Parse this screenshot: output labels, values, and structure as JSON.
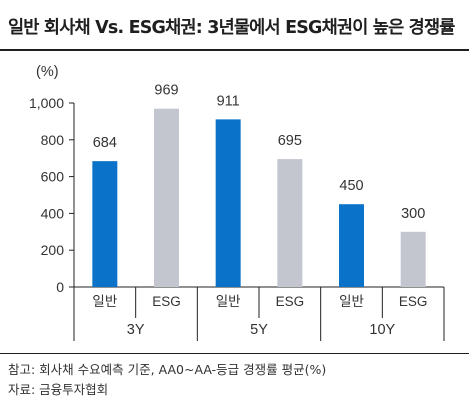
{
  "title": "일반 회사채 Vs. ESG채권: 3년물에서 ESG채권이 높은 경쟁률",
  "notes": [
    "참고: 회사채 수요예측 기준, AA0~AA-등급 경쟁률 평균(%)",
    "자료: 금융투자협회"
  ],
  "colors": {
    "general": "#0a73c9",
    "esg": "#c3c5cf",
    "axis": "#222222"
  },
  "chart_data": {
    "type": "bar",
    "unit_label": "(%)",
    "groups": [
      "3Y",
      "5Y",
      "10Y"
    ],
    "bars": [
      {
        "group": "3Y",
        "category": "일반",
        "value": 684
      },
      {
        "group": "3Y",
        "category": "ESG",
        "value": 969
      },
      {
        "group": "5Y",
        "category": "일반",
        "value": 911
      },
      {
        "group": "5Y",
        "category": "ESG",
        "value": 695
      },
      {
        "group": "10Y",
        "category": "일반",
        "value": 450
      },
      {
        "group": "10Y",
        "category": "ESG",
        "value": 300
      }
    ],
    "y_ticks": [
      "0",
      "200",
      "400",
      "600",
      "800",
      "1,000"
    ],
    "ylim": [
      0,
      1000
    ],
    "grid": false,
    "legend": "none"
  }
}
